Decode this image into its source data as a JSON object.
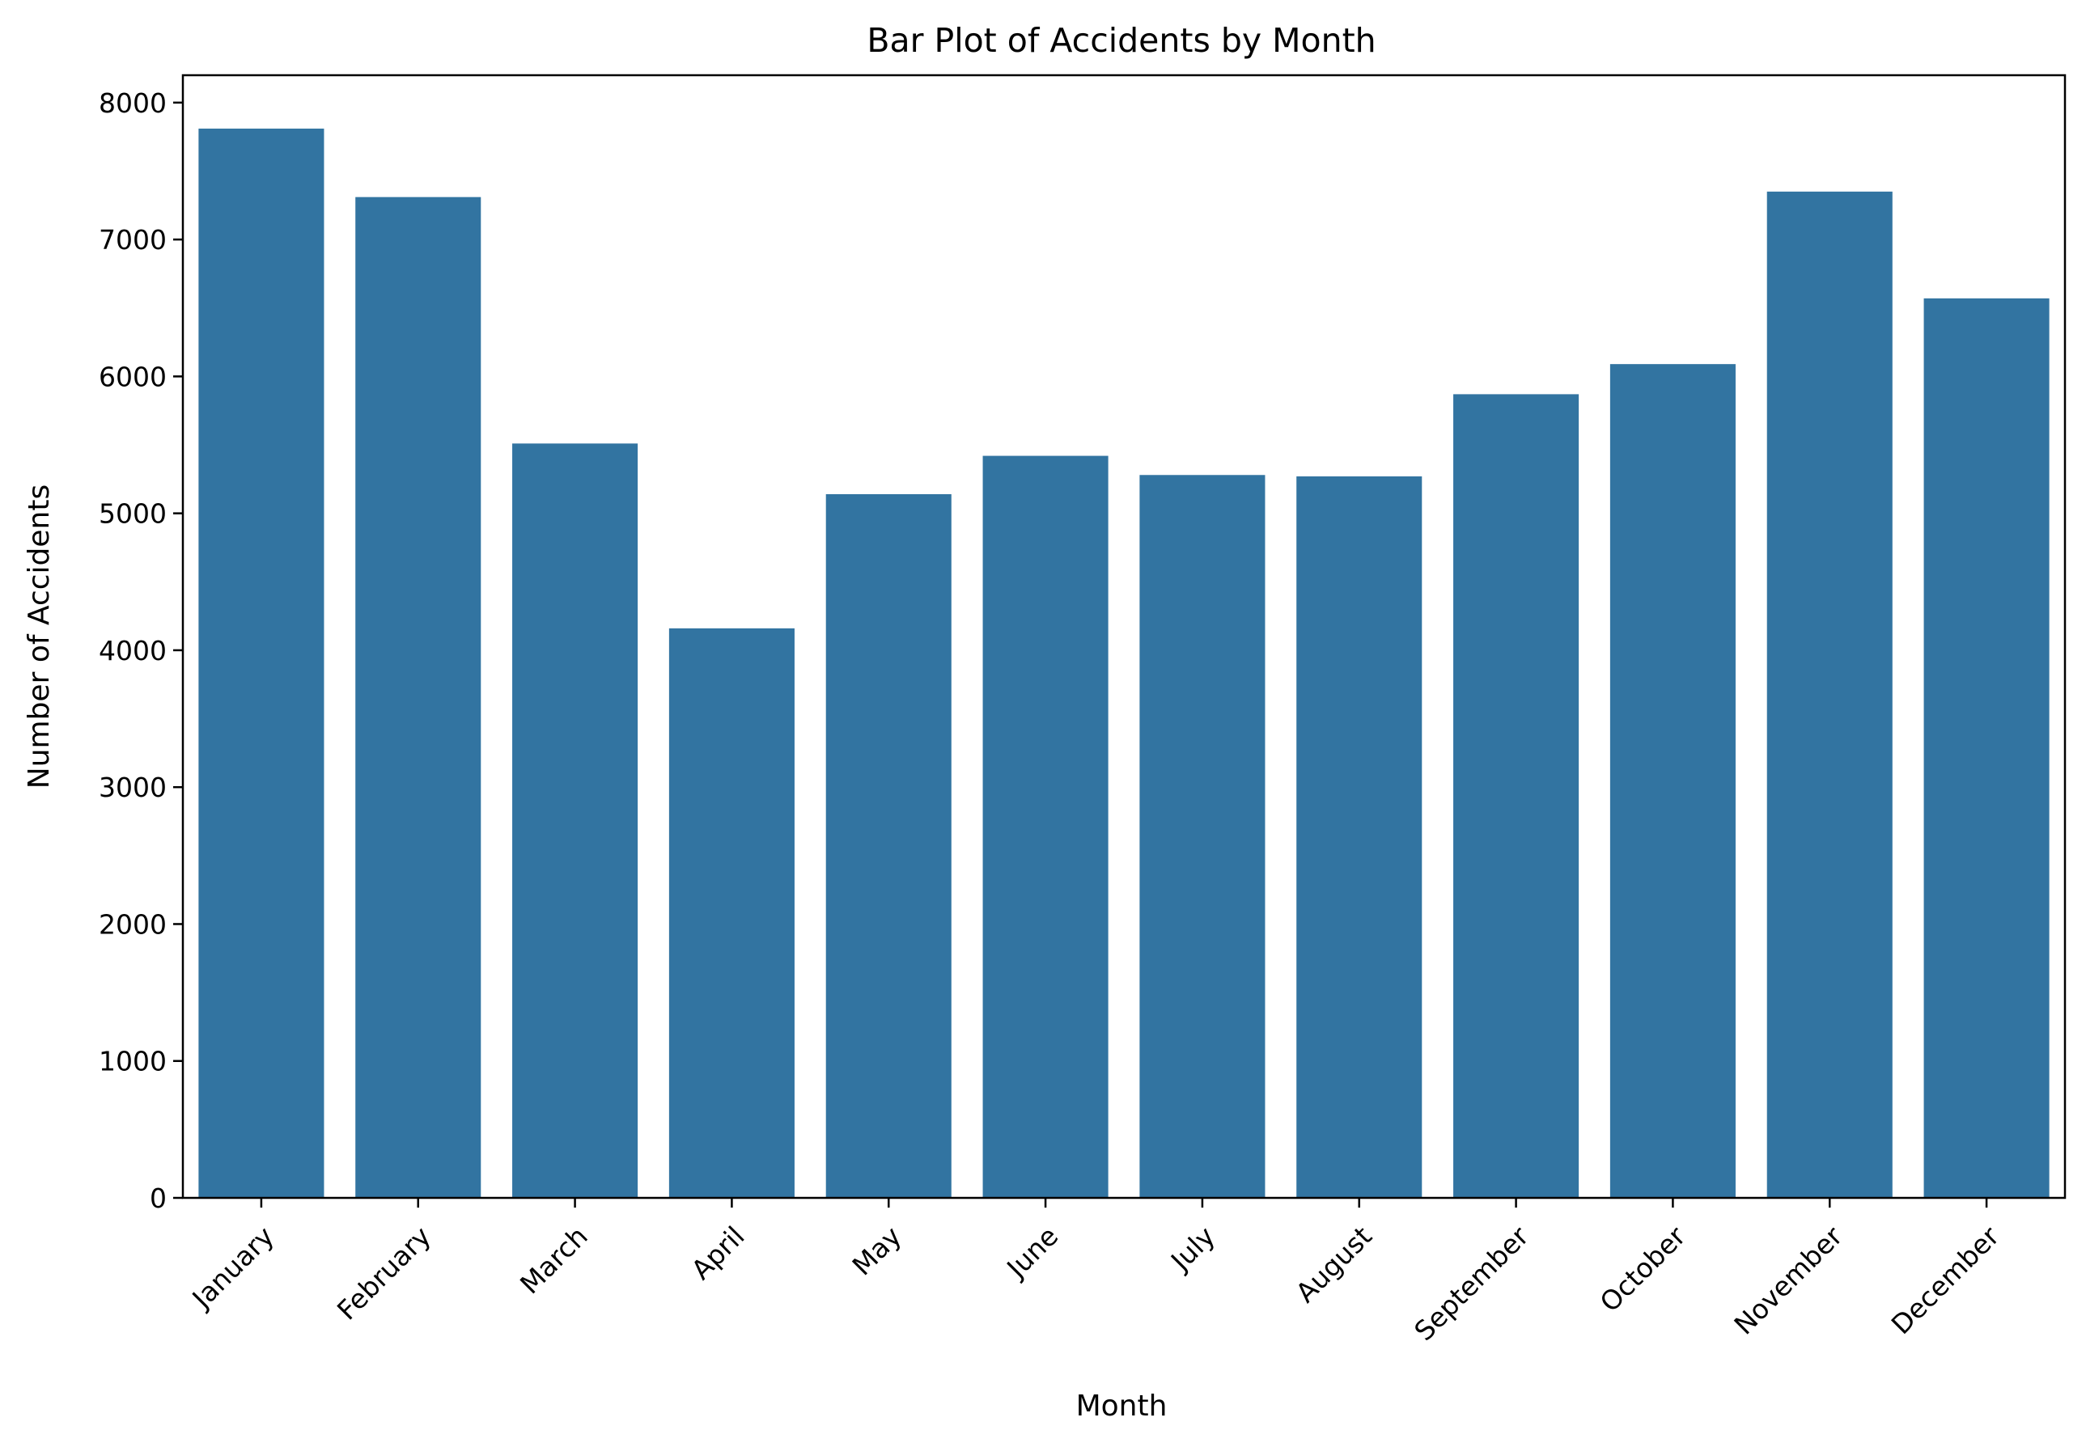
{
  "chart_data": {
    "type": "bar",
    "title": "Bar Plot of Accidents by Month",
    "xlabel": "Month",
    "ylabel": "Number of Accidents",
    "categories": [
      "January",
      "February",
      "March",
      "April",
      "May",
      "June",
      "July",
      "August",
      "September",
      "October",
      "November",
      "December"
    ],
    "values": [
      7810,
      7310,
      5510,
      4160,
      5140,
      5420,
      5280,
      5270,
      5870,
      6090,
      7350,
      6570
    ],
    "ylim": [
      0,
      8200
    ],
    "yticks": [
      0,
      1000,
      2000,
      3000,
      4000,
      5000,
      6000,
      7000,
      8000
    ],
    "bar_color": "#3274a1",
    "grid": false,
    "legend": "none"
  }
}
